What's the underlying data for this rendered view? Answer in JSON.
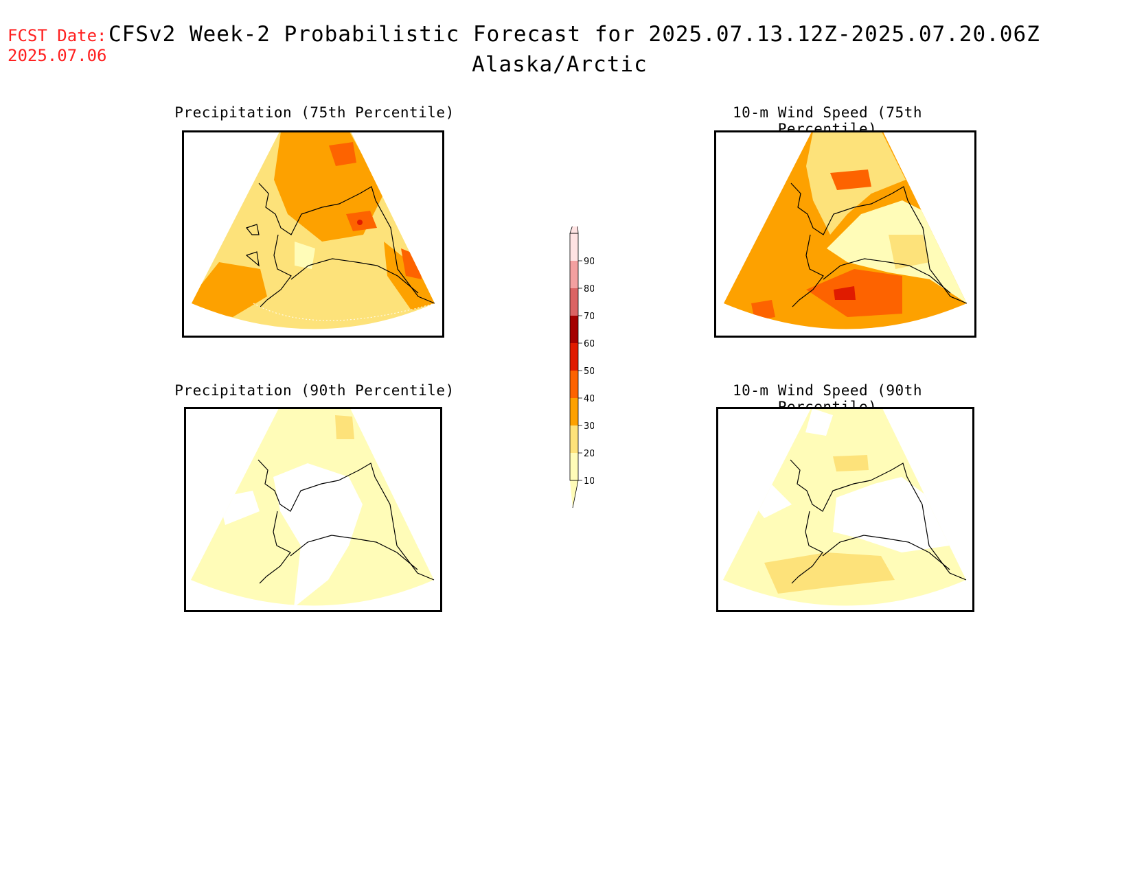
{
  "header": {
    "fcst_label": "FCST Date:",
    "fcst_date": "2025.07.06",
    "title": "CFSv2 Week-2 Probabilistic Forecast for 2025.07.13.12Z-2025.07.20.06Z",
    "subtitle": "Alaska/Arctic"
  },
  "panels": {
    "precip75": "Precipitation (75th Percentile)",
    "wind75": "10-m Wind Speed (75th Percentile)",
    "precip90": "Precipitation (90th Percentile)",
    "wind90": "10-m Wind Speed (90th Percentile)"
  },
  "colorbar": {
    "levels": [
      {
        "label": "10",
        "color": "#fffcb8"
      },
      {
        "label": "20",
        "color": "#fde27a"
      },
      {
        "label": "30",
        "color": "#fda100"
      },
      {
        "label": "40",
        "color": "#fd6300"
      },
      {
        "label": "50",
        "color": "#e01b00"
      },
      {
        "label": "60",
        "color": "#a40000"
      },
      {
        "label": "70",
        "color": "#db6464"
      },
      {
        "label": "80",
        "color": "#f3a0a0"
      },
      {
        "label": "90",
        "color": "#ffe3e3"
      }
    ]
  }
}
